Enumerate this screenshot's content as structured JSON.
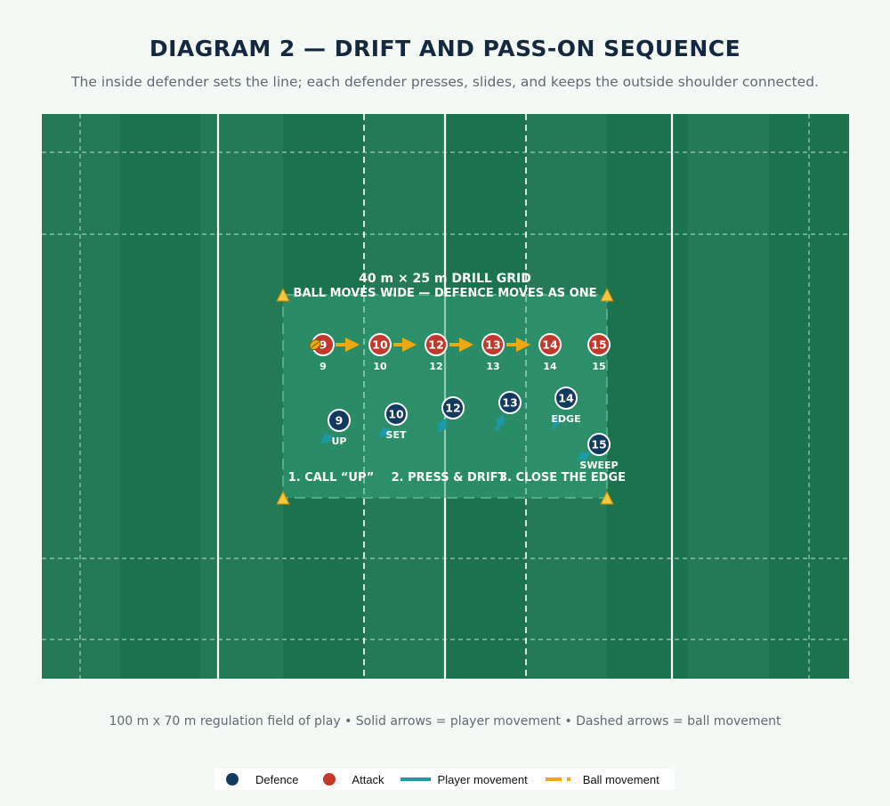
{
  "header": {
    "title": "DIAGRAM 2 — DRIFT AND PASS-ON SEQUENCE",
    "subtitle": "The inside defender sets the line; each defender presses, slides, and keeps the outside shoulder connected."
  },
  "grid": {
    "title": "40 m × 25 m DRILL GRID",
    "subtitle": "BALL MOVES WIDE — DEFENCE MOVES AS ONE"
  },
  "attackers": [
    {
      "number": "9",
      "label": "9",
      "has_ball": true
    },
    {
      "number": "10",
      "label": "10"
    },
    {
      "number": "12",
      "label": "12"
    },
    {
      "number": "13",
      "label": "13"
    },
    {
      "number": "14",
      "label": "14"
    },
    {
      "number": "15",
      "label": "15"
    }
  ],
  "defenders": [
    {
      "number": "9",
      "label": "UP"
    },
    {
      "number": "10",
      "label": "SET"
    },
    {
      "number": "12",
      "label": ""
    },
    {
      "number": "13",
      "label": ""
    },
    {
      "number": "14",
      "label": "EDGE"
    },
    {
      "number": "15",
      "label": "SWEEP"
    }
  ],
  "phases": [
    "1. CALL “UP”",
    "2. PRESS & DRIFT",
    "3. CLOSE THE EDGE"
  ],
  "footnote": "100 m x 70 m regulation field of play • Solid arrows = player movement • Dashed arrows = ball movement",
  "legend": {
    "defence": "Defence",
    "attack": "Attack",
    "player_movement": "Player movement",
    "ball_movement": "Ball movement"
  },
  "colors": {
    "defence": "#123a5e",
    "attack": "#c0392b",
    "player_movement": "#1c9aa8",
    "ball_movement": "#f0a90c",
    "field_dark": "#1b734e",
    "field_light": "#237a54",
    "grid_fill": "#2e8a66",
    "cone": "#f6c63c"
  }
}
